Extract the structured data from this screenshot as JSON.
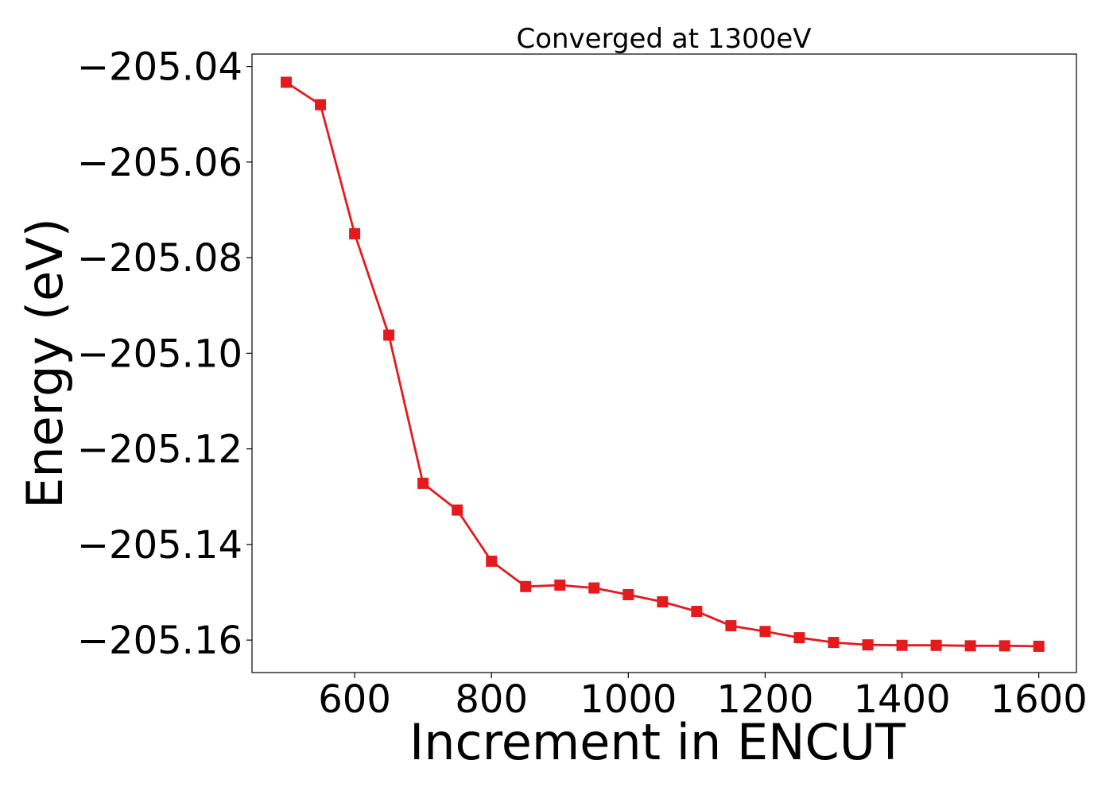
{
  "chart_data": {
    "type": "line",
    "title": "Converged at 1300eV",
    "xlabel": "Increment in ENCUT",
    "ylabel": "Energy (eV)",
    "xlim": [
      450,
      1655
    ],
    "ylim": [
      -205.1668,
      -205.0374
    ],
    "xticks": [
      600,
      800,
      1000,
      1200,
      1400,
      1600
    ],
    "xtick_labels": [
      "600",
      "800",
      "1000",
      "1200",
      "1400",
      "1600"
    ],
    "yticks": [
      -205.04,
      -205.06,
      -205.08,
      -205.1,
      -205.12,
      -205.14,
      -205.16
    ],
    "ytick_labels": [
      "−205.04",
      "−205.06",
      "−205.08",
      "−205.10",
      "−205.12",
      "−205.14",
      "−205.16"
    ],
    "grid": false,
    "marker": "square",
    "color": "#e41a1c",
    "x": [
      500,
      550,
      600,
      650,
      700,
      750,
      800,
      850,
      900,
      950,
      1000,
      1050,
      1100,
      1150,
      1200,
      1250,
      1300,
      1350,
      1400,
      1450,
      1500,
      1550,
      1600
    ],
    "y": [
      -205.0433,
      -205.048,
      -205.075,
      -205.0962,
      -205.1272,
      -205.1328,
      -205.1435,
      -205.1488,
      -205.1485,
      -205.1491,
      -205.1505,
      -205.152,
      -205.154,
      -205.157,
      -205.1582,
      -205.1595,
      -205.1605,
      -205.161,
      -205.1611,
      -205.1611,
      -205.1612,
      -205.1612,
      -205.1613
    ]
  }
}
